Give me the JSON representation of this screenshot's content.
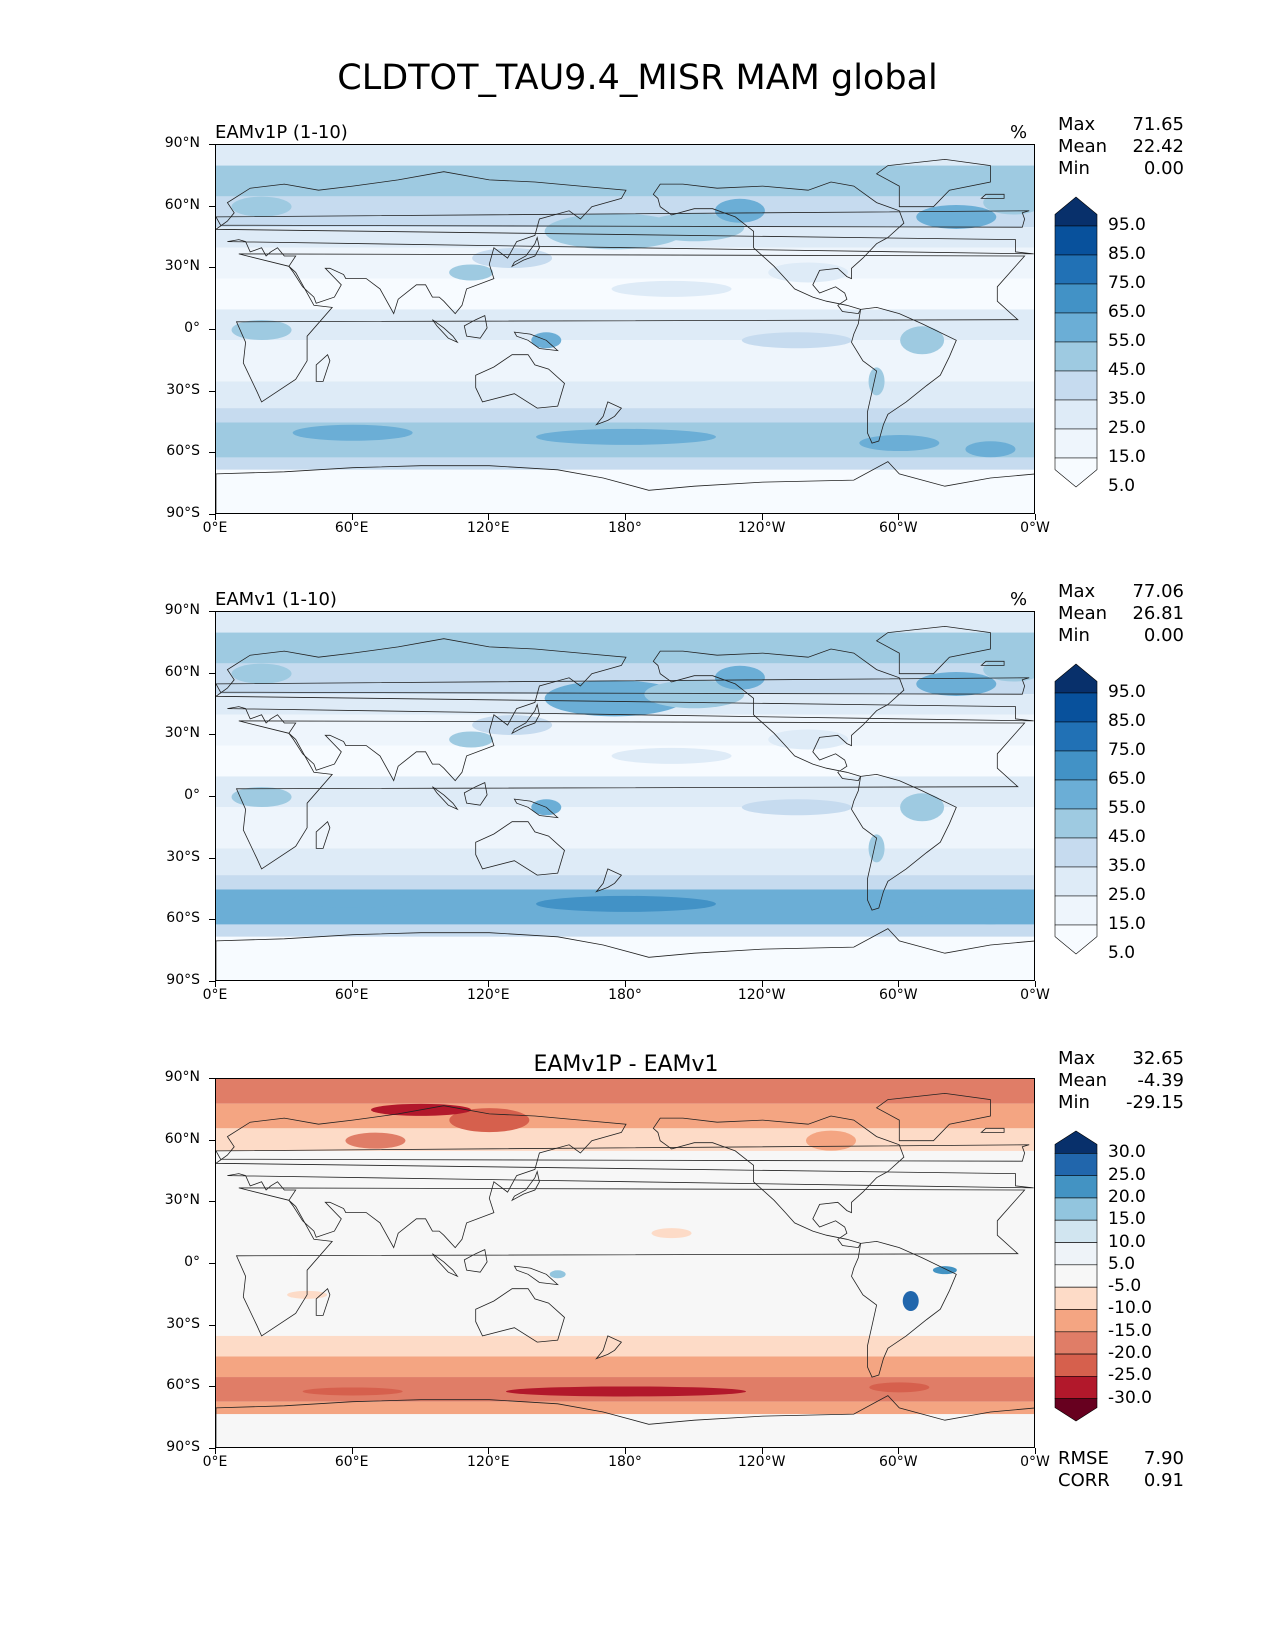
{
  "title": "CLDTOT_TAU9.4_MISR MAM global",
  "lat_ticks": [
    "90°N",
    "60°N",
    "30°N",
    "0°",
    "30°S",
    "60°S",
    "90°S"
  ],
  "lon_ticks": [
    "0°E",
    "60°E",
    "120°E",
    "180°",
    "120°W",
    "60°W",
    "0°W"
  ],
  "panels": [
    {
      "title": "EAMv1P (1-10)",
      "units": "%",
      "stats": {
        "max_label": "Max",
        "max": "71.65",
        "mean_label": "Mean",
        "mean": "22.42",
        "min_label": "Min",
        "min": "0.00"
      },
      "colorbar": {
        "labels": [
          "95.0",
          "85.0",
          "75.0",
          "65.0",
          "55.0",
          "45.0",
          "35.0",
          "25.0",
          "15.0",
          "5.0"
        ],
        "colors": [
          "#08306b",
          "#08519c",
          "#2171b5",
          "#4292c6",
          "#6baed6",
          "#9ecae1",
          "#c6dbef",
          "#deebf7",
          "#eef5fc",
          "#f7fbff"
        ]
      },
      "scheme": "blue_field",
      "intensity": 0.85
    },
    {
      "title": "EAMv1 (1-10)",
      "units": "%",
      "stats": {
        "max_label": "Max",
        "max": "77.06",
        "mean_label": "Mean",
        "mean": "26.81",
        "min_label": "Min",
        "min": "0.00"
      },
      "colorbar": {
        "labels": [
          "95.0",
          "85.0",
          "75.0",
          "65.0",
          "55.0",
          "45.0",
          "35.0",
          "25.0",
          "15.0",
          "5.0"
        ],
        "colors": [
          "#08306b",
          "#08519c",
          "#2171b5",
          "#4292c6",
          "#6baed6",
          "#9ecae1",
          "#c6dbef",
          "#deebf7",
          "#eef5fc",
          "#f7fbff"
        ]
      },
      "scheme": "blue_field",
      "intensity": 1.0
    },
    {
      "title": "EAMv1P - EAMv1",
      "units": "",
      "stats": {
        "max_label": "Max",
        "max": "32.65",
        "mean_label": "Mean",
        "mean": "-4.39",
        "min_label": "Min",
        "min": "-29.15"
      },
      "colorbar": {
        "labels": [
          "30.0",
          "25.0",
          "20.0",
          "15.0",
          "10.0",
          "5.0",
          "-5.0",
          "-10.0",
          "-15.0",
          "-20.0",
          "-25.0",
          "-30.0"
        ],
        "colors": [
          "#08306b",
          "#2166ac",
          "#4393c3",
          "#92c5de",
          "#d1e5f0",
          "#eef3f8",
          "#f7f7f7",
          "#fddbc7",
          "#f4a582",
          "#e07d67",
          "#d6604d",
          "#b2182b",
          "#67001f"
        ]
      },
      "footer": {
        "rmse_label": "RMSE",
        "rmse": "7.90",
        "corr_label": "CORR",
        "corr": "0.91"
      },
      "scheme": "diff_field"
    }
  ]
}
